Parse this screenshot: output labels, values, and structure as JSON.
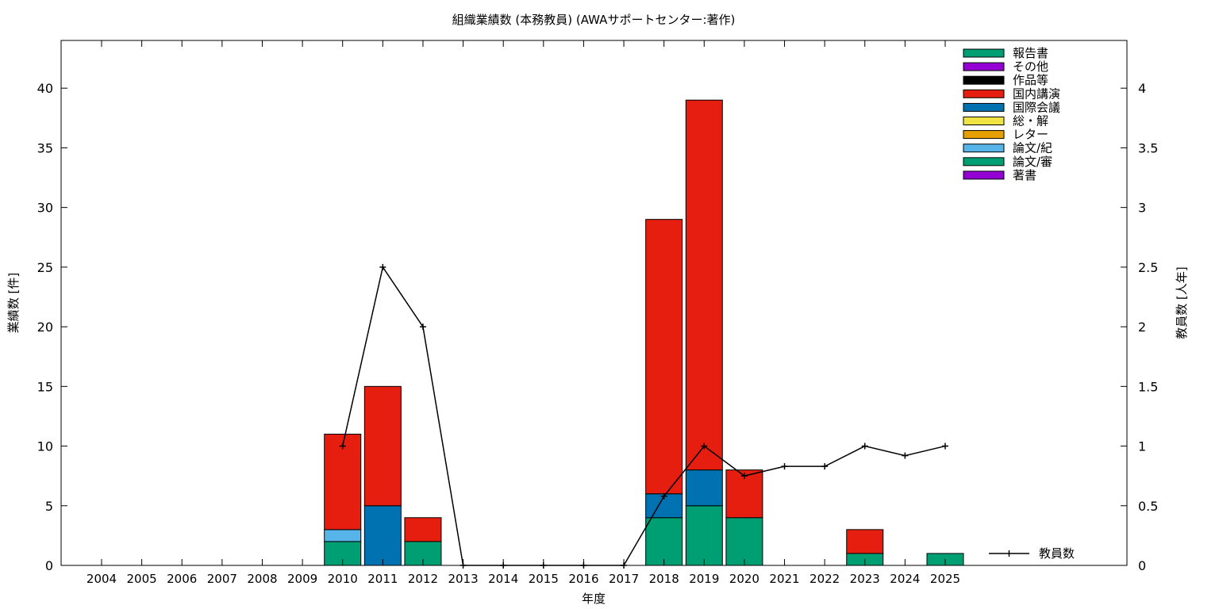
{
  "chart_data": {
    "type": "bar",
    "stacked": true,
    "title": "組織業績数 (本務教員) (AWAサポートセンター:著作)",
    "xlabel": "年度",
    "ylabel": "業績数 [件]",
    "y2label": "教員数 [人年]",
    "ylim": [
      0,
      44
    ],
    "y2lim": [
      0,
      4.4
    ],
    "yticks": [
      "0",
      "5",
      "10",
      "15",
      "20",
      "25",
      "30",
      "35",
      "40"
    ],
    "y2ticks": [
      "0",
      "0.5",
      "1",
      "1.5",
      "2",
      "2.5",
      "3",
      "3.5",
      "4"
    ],
    "categories": [
      "2004",
      "2005",
      "2006",
      "2007",
      "2008",
      "2009",
      "2010",
      "2011",
      "2012",
      "2013",
      "2014",
      "2015",
      "2016",
      "2017",
      "2018",
      "2019",
      "2020",
      "2021",
      "2022",
      "2023",
      "2024",
      "2025"
    ],
    "legend_position": "top-right",
    "series": [
      {
        "name": "論文/審",
        "color": "#009e73",
        "values": [
          0,
          0,
          0,
          0,
          0,
          0,
          2,
          0,
          2,
          0,
          0,
          0,
          0,
          0,
          4,
          5,
          4,
          0,
          0,
          1,
          0,
          1
        ]
      },
      {
        "name": "論文/紀",
        "color": "#56b4e9",
        "values": [
          0,
          0,
          0,
          0,
          0,
          0,
          1,
          0,
          0,
          0,
          0,
          0,
          0,
          0,
          0,
          0,
          0,
          0,
          0,
          0,
          0,
          0
        ]
      },
      {
        "name": "国際会議",
        "color": "#0072b2",
        "values": [
          0,
          0,
          0,
          0,
          0,
          0,
          0,
          5,
          0,
          0,
          0,
          0,
          0,
          0,
          2,
          3,
          0,
          0,
          0,
          0,
          0,
          0
        ]
      },
      {
        "name": "国内講演",
        "color": "#e51e10",
        "values": [
          0,
          0,
          0,
          0,
          0,
          0,
          8,
          10,
          2,
          0,
          0,
          0,
          0,
          0,
          23,
          31,
          4,
          0,
          0,
          2,
          0,
          0
        ]
      }
    ],
    "legend_entries": [
      {
        "name": "報告書",
        "color": "#009e73"
      },
      {
        "name": "その他",
        "color": "#9400d3"
      },
      {
        "name": "作品等",
        "color": "#000000"
      },
      {
        "name": "国内講演",
        "color": "#e51e10"
      },
      {
        "name": "国際会議",
        "color": "#0072b2"
      },
      {
        "name": "総・解",
        "color": "#f0e442"
      },
      {
        "name": "レター",
        "color": "#e69f00"
      },
      {
        "name": "論文/紀",
        "color": "#56b4e9"
      },
      {
        "name": "論文/審",
        "color": "#009e73"
      },
      {
        "name": "著書",
        "color": "#9400d3"
      }
    ],
    "line_series": {
      "name": "教員数",
      "axis": "y2",
      "color": "#000000",
      "x": [
        "2010",
        "2011",
        "2012",
        "2013",
        "2014",
        "2015",
        "2016",
        "2017",
        "2018",
        "2019",
        "2020",
        "2021",
        "2022",
        "2023",
        "2024",
        "2025"
      ],
      "values": [
        1.0,
        2.5,
        2.0,
        0,
        0,
        0,
        0,
        0,
        0.58,
        1.0,
        0.75,
        0.83,
        0.83,
        1.0,
        0.92,
        1.0
      ]
    }
  }
}
